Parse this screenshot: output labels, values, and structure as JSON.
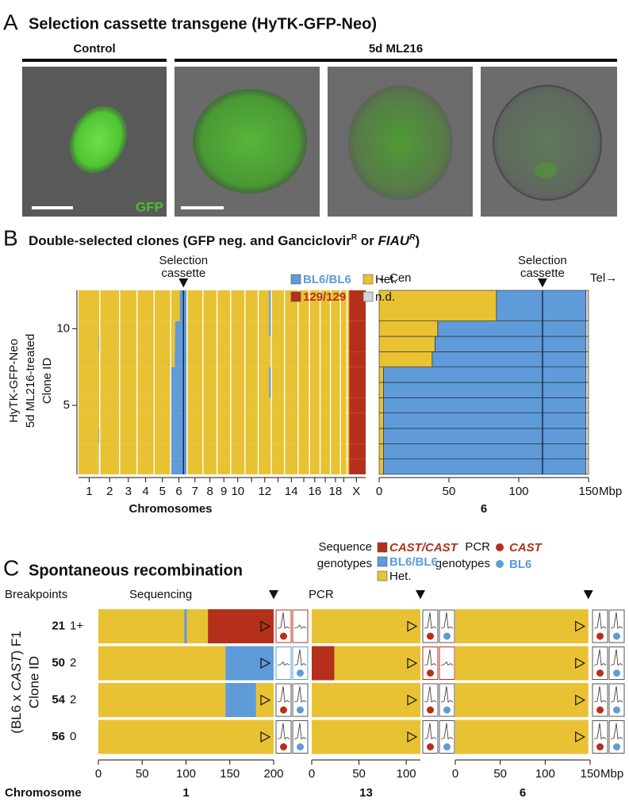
{
  "panel_a": {
    "letter": "A",
    "title": "Selection cassette transgene (HyTK-GFP-Neo)",
    "control": "Control",
    "treated": "5d ML216",
    "channel": "GFP"
  },
  "panel_b": {
    "letter": "B",
    "title": [
      {
        "text": "Double-selected clones (GFP neg. and Ganciclovir"
      },
      {
        "text": "R",
        "style": "sup"
      },
      {
        "text": " or "
      },
      {
        "text": "FIAU",
        "style": "italic"
      },
      {
        "text": "R",
        "style": "sup-italic"
      },
      {
        "text": ")"
      }
    ],
    "legend": [
      {
        "name": "BL6/BL6",
        "color": "#5e9bd8",
        "colored_label": true
      },
      {
        "name": "Het.",
        "color": "#e8c233",
        "colored_label": false
      },
      {
        "name": "129/129",
        "color": "#b5301a",
        "colored_label": true
      },
      {
        "name": "n.d.",
        "color": "#d4d4d4",
        "colored_label": false
      }
    ],
    "cassette_label": [
      "Selection",
      "cassette"
    ],
    "y_label": [
      "HyTK-GFP-Neo",
      "5d ML216-treated",
      "Clone ID"
    ],
    "ylim": [
      0.5,
      12.5
    ],
    "yticks": [
      5,
      10
    ],
    "default_genotype": "Het.",
    "genome": {
      "x_label": "Chromosomes",
      "chromosomes": [
        "1",
        "2",
        "3",
        "4",
        "5",
        "6",
        "7",
        "8",
        "9",
        "10",
        null,
        "12",
        null,
        "14",
        null,
        "16",
        null,
        "18",
        null,
        "X"
      ],
      "lengths": [
        195,
        182,
        160,
        157,
        152,
        150,
        145,
        130,
        125,
        131,
        122,
        120,
        121,
        125,
        104,
        98,
        95,
        91,
        61,
        171
      ]
    },
    "chr6": {
      "label": "6",
      "xlim": [
        0,
        150
      ],
      "xticks": [
        0,
        50,
        100,
        150
      ],
      "unit": "Mbp",
      "cassette": 117,
      "cen": "Cen",
      "tel": "Tel",
      "chromosome": 5
    },
    "clones": [
      {
        "id": 1,
        "chr6": [
          {
            "start": 0,
            "end": 3,
            "genotype": "Het."
          },
          {
            "start": 3,
            "end": 148,
            "genotype": "BL6/BL6"
          },
          {
            "start": 148,
            "end": 150,
            "genotype": "n.d."
          }
        ],
        "other": [
          {
            "chromosome": 0,
            "start": 182,
            "end": 190,
            "genotype": "n.d."
          },
          {
            "chromosome": 19,
            "start": 20,
            "end": 171,
            "genotype": "129/129"
          }
        ]
      },
      {
        "id": 2,
        "chr6": [
          {
            "start": 0,
            "end": 3,
            "genotype": "Het."
          },
          {
            "start": 3,
            "end": 148,
            "genotype": "BL6/BL6"
          },
          {
            "start": 148,
            "end": 150,
            "genotype": "n.d."
          }
        ],
        "other": [
          {
            "chromosome": 0,
            "start": 182,
            "end": 190,
            "genotype": "n.d."
          },
          {
            "chromosome": 19,
            "start": 20,
            "end": 171,
            "genotype": "129/129"
          }
        ]
      },
      {
        "id": 3,
        "chr6": [
          {
            "start": 0,
            "end": 3,
            "genotype": "Het."
          },
          {
            "start": 3,
            "end": 148,
            "genotype": "BL6/BL6"
          },
          {
            "start": 148,
            "end": 150,
            "genotype": "n.d."
          }
        ],
        "other": [
          {
            "chromosome": 0,
            "start": 185,
            "end": 192,
            "genotype": "BL6/BL6"
          },
          {
            "chromosome": 19,
            "start": 20,
            "end": 171,
            "genotype": "129/129"
          }
        ]
      },
      {
        "id": 4,
        "chr6": [
          {
            "start": 0,
            "end": 3,
            "genotype": "Het."
          },
          {
            "start": 3,
            "end": 148,
            "genotype": "BL6/BL6"
          },
          {
            "start": 148,
            "end": 150,
            "genotype": "n.d."
          }
        ],
        "other": [
          {
            "chromosome": 19,
            "start": 20,
            "end": 171,
            "genotype": "129/129"
          }
        ]
      },
      {
        "id": 5,
        "chr6": [
          {
            "start": 0,
            "end": 3,
            "genotype": "Het."
          },
          {
            "start": 3,
            "end": 148,
            "genotype": "BL6/BL6"
          },
          {
            "start": 148,
            "end": 150,
            "genotype": "n.d."
          }
        ],
        "other": [
          {
            "chromosome": 19,
            "start": 20,
            "end": 171,
            "genotype": "129/129"
          }
        ]
      },
      {
        "id": 6,
        "chr6": [
          {
            "start": 0,
            "end": 3,
            "genotype": "Het."
          },
          {
            "start": 3,
            "end": 148,
            "genotype": "BL6/BL6"
          },
          {
            "start": 148,
            "end": 150,
            "genotype": "n.d."
          }
        ],
        "other": [
          {
            "chromosome": 11,
            "start": 100,
            "end": 120,
            "genotype": "BL6/BL6"
          },
          {
            "chromosome": 19,
            "start": 20,
            "end": 171,
            "genotype": "129/129"
          }
        ]
      },
      {
        "id": 7,
        "chr6": [
          {
            "start": 0,
            "end": 3,
            "genotype": "Het."
          },
          {
            "start": 3,
            "end": 148,
            "genotype": "BL6/BL6"
          },
          {
            "start": 148,
            "end": 150,
            "genotype": "n.d."
          }
        ],
        "other": [
          {
            "chromosome": 11,
            "start": 100,
            "end": 120,
            "genotype": "BL6/BL6"
          },
          {
            "chromosome": 19,
            "start": 20,
            "end": 171,
            "genotype": "129/129"
          }
        ]
      },
      {
        "id": 8,
        "chr6": [
          {
            "start": 0,
            "end": 38,
            "genotype": "Het."
          },
          {
            "start": 38,
            "end": 148,
            "genotype": "BL6/BL6"
          },
          {
            "start": 148,
            "end": 150,
            "genotype": "n.d."
          }
        ],
        "other": [
          {
            "chromosome": 19,
            "start": 20,
            "end": 171,
            "genotype": "129/129"
          }
        ]
      },
      {
        "id": 9,
        "chr6": [
          {
            "start": 0,
            "end": 40,
            "genotype": "Het."
          },
          {
            "start": 40,
            "end": 148,
            "genotype": "BL6/BL6"
          },
          {
            "start": 148,
            "end": 150,
            "genotype": "n.d."
          }
        ],
        "other": [
          {
            "chromosome": 0,
            "start": 185,
            "end": 192,
            "genotype": "BL6/BL6"
          },
          {
            "chromosome": 19,
            "start": 20,
            "end": 171,
            "genotype": "129/129"
          }
        ]
      },
      {
        "id": 10,
        "chr6": [
          {
            "start": 0,
            "end": 42,
            "genotype": "Het."
          },
          {
            "start": 42,
            "end": 148,
            "genotype": "BL6/BL6"
          },
          {
            "start": 148,
            "end": 150,
            "genotype": "n.d."
          }
        ],
        "other": [
          {
            "chromosome": 11,
            "start": 100,
            "end": 120,
            "genotype": "BL6/BL6"
          },
          {
            "chromosome": 19,
            "start": 20,
            "end": 171,
            "genotype": "129/129"
          }
        ]
      },
      {
        "id": 11,
        "chr6": [
          {
            "start": 0,
            "end": 84,
            "genotype": "Het."
          },
          {
            "start": 84,
            "end": 148,
            "genotype": "BL6/BL6"
          },
          {
            "start": 148,
            "end": 150,
            "genotype": "n.d."
          }
        ],
        "other": [
          {
            "chromosome": 11,
            "start": 100,
            "end": 120,
            "genotype": "BL6/BL6"
          },
          {
            "chromosome": 19,
            "start": 20,
            "end": 171,
            "genotype": "129/129"
          }
        ]
      }
    ]
  },
  "panel_c": {
    "letter": "C",
    "title": "Spontaneous recombination",
    "seq_legend_title": [
      "Sequence",
      "genotypes"
    ],
    "seq_legend": [
      {
        "name": "CAST/CAST",
        "color": "#b5301a",
        "style": "italic"
      },
      {
        "name": "BL6/BL6",
        "color": "#5e9bd8",
        "style": "normal"
      },
      {
        "name": "Het.",
        "color": "#e8c233",
        "style": "plain"
      }
    ],
    "pcr_legend_title": [
      "PCR",
      "genotypes"
    ],
    "pcr_legend": [
      {
        "name": "CAST",
        "color": "#b5301a",
        "style": "italic"
      },
      {
        "name": "BL6",
        "color": "#5e9bd8",
        "style": "normal"
      }
    ],
    "headers": {
      "breakpoints": "Breakpoints",
      "sequencing": "Sequencing",
      "pcr": "PCR"
    },
    "y_label": [
      {
        "text": "(BL6 x "
      },
      {
        "text": "CAST",
        "style": "italic"
      },
      {
        "text": ") F1"
      }
    ],
    "y_label2": "Clone ID",
    "x_label": "Chromosome",
    "unit": "Mbp",
    "chromosomes": [
      {
        "label": "1",
        "xlim": [
          0,
          200
        ],
        "xticks": [
          0,
          50,
          100,
          150,
          200
        ],
        "cassette": 200
      },
      {
        "label": "13",
        "xlim": [
          0,
          115
        ],
        "xticks": [
          0,
          50,
          100
        ],
        "cassette": 115
      },
      {
        "label": "6",
        "xlim": [
          0,
          150
        ],
        "xticks": [
          0,
          50,
          100,
          150
        ],
        "cassette": 148
      }
    ],
    "clones": [
      {
        "id": "21",
        "breakpoints": "1+",
        "segments": [
          [
            {
              "start": 0,
              "end": 98,
              "genotype": "Het."
            },
            {
              "start": 98,
              "end": 101,
              "genotype": "BL6/BL6"
            },
            {
              "start": 101,
              "end": 125,
              "genotype": "Het."
            },
            {
              "start": 125,
              "end": 200,
              "genotype": "CAST/CAST"
            }
          ],
          [
            {
              "start": 0,
              "end": 115,
              "genotype": "Het."
            }
          ],
          [
            {
              "start": 0,
              "end": 148,
              "genotype": "Het."
            }
          ]
        ],
        "pcr": [
          [
            "CAST"
          ],
          [
            "CAST",
            "BL6"
          ],
          [
            "CAST",
            "BL6"
          ]
        ]
      },
      {
        "id": "50",
        "breakpoints": "2",
        "segments": [
          [
            {
              "start": 0,
              "end": 145,
              "genotype": "Het."
            },
            {
              "start": 145,
              "end": 200,
              "genotype": "BL6/BL6"
            }
          ],
          [
            {
              "start": 0,
              "end": 24,
              "genotype": "CAST/CAST"
            },
            {
              "start": 24,
              "end": 115,
              "genotype": "Het."
            }
          ],
          [
            {
              "start": 0,
              "end": 148,
              "genotype": "Het."
            }
          ]
        ],
        "pcr": [
          [
            "BL6"
          ],
          [
            "CAST"
          ],
          [
            "CAST",
            "BL6"
          ]
        ]
      },
      {
        "id": "54",
        "breakpoints": "2",
        "segments": [
          [
            {
              "start": 0,
              "end": 145,
              "genotype": "Het."
            },
            {
              "start": 145,
              "end": 180,
              "genotype": "BL6/BL6"
            },
            {
              "start": 180,
              "end": 200,
              "genotype": "Het."
            }
          ],
          [
            {
              "start": 0,
              "end": 115,
              "genotype": "Het."
            }
          ],
          [
            {
              "start": 0,
              "end": 148,
              "genotype": "Het."
            }
          ]
        ],
        "pcr": [
          [
            "CAST",
            "BL6"
          ],
          [
            "CAST",
            "BL6"
          ],
          [
            "CAST",
            "BL6"
          ]
        ]
      },
      {
        "id": "56",
        "breakpoints": "0",
        "segments": [
          [
            {
              "start": 0,
              "end": 200,
              "genotype": "Het."
            }
          ],
          [
            {
              "start": 0,
              "end": 115,
              "genotype": "Het."
            }
          ],
          [
            {
              "start": 0,
              "end": 148,
              "genotype": "Het."
            }
          ]
        ],
        "pcr": [
          [
            "CAST",
            "BL6"
          ],
          [
            "CAST",
            "BL6"
          ],
          [
            "CAST",
            "BL6"
          ]
        ]
      }
    ]
  }
}
